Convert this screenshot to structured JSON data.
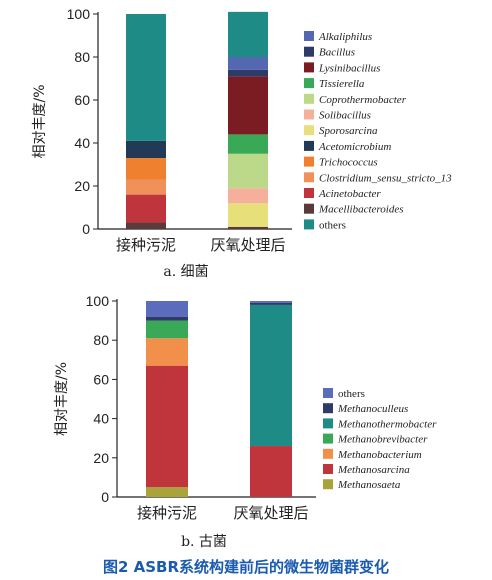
{
  "caption": "图2  ASBR系统构建前后的微生物菌群变化",
  "chart_data": [
    {
      "type": "bar",
      "stacked": true,
      "subtitle": "a. 细菌",
      "ylabel": "相对丰度/%",
      "ylim": [
        0,
        100
      ],
      "yticks": [
        0,
        20,
        40,
        60,
        80,
        100
      ],
      "categories": [
        "接种污泥",
        "厌氧处理后"
      ],
      "series": [
        {
          "name": "Macellibacteroides",
          "color": "#5b3a3a",
          "values": [
            3,
            1
          ]
        },
        {
          "name": "Acinetobacter",
          "color": "#c0353b",
          "values": [
            13,
            0
          ]
        },
        {
          "name": "Clostridium_sensu_stricto_13",
          "color": "#f0915a",
          "values": [
            7,
            0
          ]
        },
        {
          "name": "Trichococcus",
          "color": "#ef8030",
          "values": [
            10,
            0
          ]
        },
        {
          "name": "Acetomicrobium",
          "color": "#223a56",
          "values": [
            8,
            0
          ]
        },
        {
          "name": "Sporosarcina",
          "color": "#e6df7a",
          "values": [
            0,
            11
          ]
        },
        {
          "name": "Solibacillus",
          "color": "#f4b09a",
          "values": [
            0,
            7
          ]
        },
        {
          "name": "Coprothermobacter",
          "color": "#bcd98a",
          "values": [
            0,
            16
          ]
        },
        {
          "name": "Tissierella",
          "color": "#3aa957",
          "values": [
            0,
            9
          ]
        },
        {
          "name": "Lysinibacillus",
          "color": "#7a1c22",
          "values": [
            0,
            27
          ]
        },
        {
          "name": "Bacillus",
          "color": "#2e3a68",
          "values": [
            0,
            3
          ]
        },
        {
          "name": "Kalkaliphilus",
          "color": "#5468b2",
          "values": [
            0,
            6
          ]
        },
        {
          "name": "others",
          "color": "#1f8b87",
          "values": [
            59,
            21
          ]
        }
      ],
      "legend_order": [
        "Kalkaliphilus",
        "Bacillus",
        "Lysinibacillus",
        "Tissierella",
        "Coprothermobacter",
        "Solibacillus",
        "Sporosarcina",
        "Acetomicrobium",
        "Trichococcus",
        "Clostridium_sensu_stricto_13",
        "Acinetobacter",
        "Macellibacteroides",
        "others"
      ],
      "legend_labels": {
        "Kalkaliphilus": "Alkaliphilus"
      },
      "legend_placement": "right"
    },
    {
      "type": "bar",
      "stacked": true,
      "subtitle": "b. 古菌",
      "ylabel": "相对丰度/%",
      "ylim": [
        0,
        100
      ],
      "yticks": [
        0,
        20,
        40,
        60,
        80,
        100
      ],
      "categories": [
        "接种污泥",
        "厌氧处理后"
      ],
      "series": [
        {
          "name": "Methanosaeta",
          "color": "#a8a43a",
          "values": [
            5,
            0
          ]
        },
        {
          "name": "Methanosarcina",
          "color": "#c0353b",
          "values": [
            62,
            26
          ]
        },
        {
          "name": "Methanobacterium",
          "color": "#f0904a",
          "values": [
            14,
            0
          ]
        },
        {
          "name": "Methanobrevibacter",
          "color": "#3aa957",
          "values": [
            9,
            0
          ]
        },
        {
          "name": "Methanothermobacter",
          "color": "#1f8b87",
          "values": [
            0,
            72
          ]
        },
        {
          "name": "Methanoculleus",
          "color": "#2e3a68",
          "values": [
            2,
            1
          ]
        },
        {
          "name": "others",
          "color": "#5c6cbc",
          "values": [
            8,
            1
          ]
        }
      ],
      "legend_order": [
        "others",
        "Methanoculleus",
        "Methanothermobacter",
        "Methanobrevibacter",
        "Methanobacterium",
        "Methanosarcina",
        "Methanosaeta"
      ],
      "legend_placement": "right"
    }
  ]
}
